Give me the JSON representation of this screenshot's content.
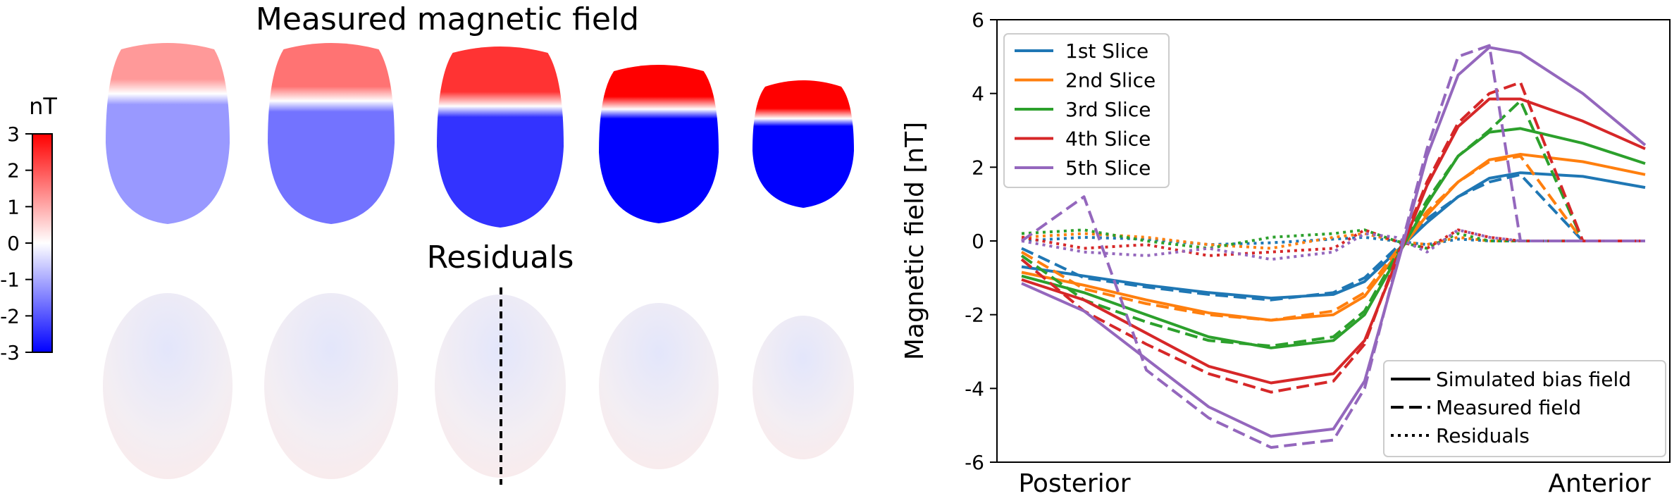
{
  "left_panel": {
    "title_measured": "Measured magnetic field",
    "title_residuals": "Residuals",
    "colorbar": {
      "unit": "nT",
      "ticks": [
        "3",
        "2",
        "1",
        "0",
        "-1",
        "-2",
        "-3"
      ],
      "range": [
        -3,
        3
      ],
      "colors": {
        "min": "#0000ff",
        "mid": "#ffffff",
        "max": "#ff0000"
      }
    },
    "slices": [
      {
        "name": "1st Slice",
        "positive_fraction": 0.28,
        "intensity": 0.4
      },
      {
        "name": "2nd Slice",
        "positive_fraction": 0.32,
        "intensity": 0.55
      },
      {
        "name": "3rd Slice",
        "positive_fraction": 0.33,
        "intensity": 0.8
      },
      {
        "name": "4th Slice",
        "positive_fraction": 0.28,
        "intensity": 1.0
      },
      {
        "name": "5th Slice",
        "positive_fraction": 0.3,
        "intensity": 1.0
      }
    ]
  },
  "chart_data": {
    "type": "line",
    "title": "",
    "xlabel": "",
    "ylabel": "Magnetic field [nT]",
    "x_tick_labels": [
      "Posterior",
      "Anterior"
    ],
    "ylim": [
      -6,
      6
    ],
    "y_ticks": [
      -6,
      -4,
      -2,
      0,
      2,
      4,
      6
    ],
    "x": [
      0,
      0.1,
      0.2,
      0.3,
      0.4,
      0.5,
      0.55,
      0.6,
      0.65,
      0.7,
      0.75,
      0.8,
      0.9,
      1.0
    ],
    "series": [
      {
        "name": "1st Slice",
        "color": "#1f77b4",
        "simulated": [
          -0.7,
          -0.95,
          -1.2,
          -1.4,
          -1.55,
          -1.45,
          -1.1,
          -0.3,
          0.5,
          1.2,
          1.7,
          1.85,
          1.75,
          1.45
        ],
        "measured": [
          -0.2,
          -1.0,
          -1.25,
          -1.45,
          -1.6,
          -1.4,
          -1.0,
          -0.2,
          0.6,
          1.2,
          1.6,
          1.8,
          0.0,
          0.0
        ],
        "residuals": [
          0.0,
          0.1,
          0.05,
          -0.1,
          -0.05,
          0.05,
          0.1,
          0.0,
          -0.1,
          0.05,
          0.0,
          0.0,
          0.0,
          0.0
        ]
      },
      {
        "name": "2nd Slice",
        "color": "#ff7f0e",
        "simulated": [
          -0.85,
          -1.2,
          -1.6,
          -1.95,
          -2.15,
          -2.0,
          -1.5,
          -0.4,
          0.7,
          1.6,
          2.2,
          2.35,
          2.15,
          1.8
        ],
        "measured": [
          -0.3,
          -1.3,
          -1.7,
          -2.0,
          -2.15,
          -1.9,
          -1.4,
          -0.3,
          0.8,
          1.6,
          2.15,
          2.3,
          0.0,
          0.0
        ],
        "residuals": [
          0.1,
          0.2,
          0.1,
          -0.1,
          -0.2,
          0.1,
          0.2,
          0.0,
          -0.1,
          0.1,
          0.0,
          0.0,
          0.0,
          0.0
        ]
      },
      {
        "name": "3rd Slice",
        "color": "#2ca02c",
        "simulated": [
          -0.95,
          -1.4,
          -2.0,
          -2.6,
          -2.9,
          -2.7,
          -2.0,
          -0.5,
          1.0,
          2.3,
          2.95,
          3.05,
          2.65,
          2.1
        ],
        "measured": [
          -0.4,
          -1.6,
          -2.2,
          -2.7,
          -2.85,
          -2.6,
          -1.9,
          -0.4,
          1.1,
          2.3,
          3.0,
          3.8,
          0.0,
          0.0
        ],
        "residuals": [
          0.2,
          0.3,
          0.0,
          -0.2,
          0.1,
          0.2,
          0.3,
          0.0,
          -0.2,
          0.2,
          0.0,
          0.0,
          0.0,
          0.0
        ]
      },
      {
        "name": "4th Slice",
        "color": "#d62728",
        "simulated": [
          -1.05,
          -1.6,
          -2.5,
          -3.4,
          -3.85,
          -3.6,
          -2.7,
          -0.6,
          1.5,
          3.1,
          3.85,
          3.85,
          3.25,
          2.5
        ],
        "measured": [
          -0.5,
          -1.9,
          -2.8,
          -3.6,
          -4.1,
          -3.8,
          -2.8,
          -0.5,
          1.6,
          3.2,
          4.0,
          4.3,
          0.0,
          0.0
        ],
        "residuals": [
          0.1,
          -0.2,
          -0.1,
          -0.4,
          -0.3,
          -0.2,
          0.3,
          0.0,
          -0.2,
          0.3,
          0.1,
          0.0,
          0.0,
          0.0
        ]
      },
      {
        "name": "5th Slice",
        "color": "#9467bd",
        "simulated": [
          -1.15,
          -1.9,
          -3.2,
          -4.5,
          -5.3,
          -5.1,
          -3.8,
          -0.8,
          2.3,
          4.5,
          5.25,
          5.1,
          4.0,
          2.6
        ],
        "measured": [
          0.0,
          1.2,
          -3.5,
          -4.8,
          -5.6,
          -5.4,
          -4.0,
          -0.7,
          2.5,
          5.0,
          5.3,
          0.0,
          0.0,
          0.0
        ],
        "residuals": [
          0.0,
          -0.3,
          -0.4,
          -0.2,
          -0.5,
          -0.3,
          0.2,
          0.1,
          -0.3,
          0.3,
          0.1,
          0.0,
          0.0,
          0.0
        ]
      }
    ],
    "legend_slices_position": "top-left",
    "legend_styles_position": "bottom-right",
    "legend_styles": [
      {
        "label": "Simulated bias field",
        "dash": "solid"
      },
      {
        "label": "Measured field",
        "dash": "dashed"
      },
      {
        "label": "Residuals",
        "dash": "dotted"
      }
    ]
  }
}
